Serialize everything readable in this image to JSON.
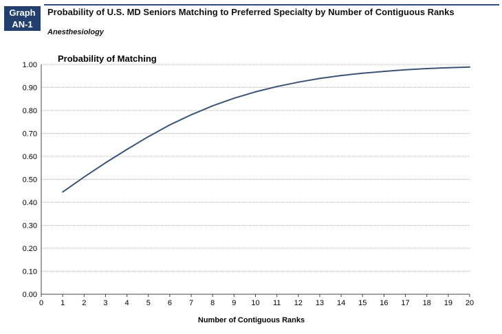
{
  "header": {
    "badge_line1": "Graph",
    "badge_line2": "AN-1",
    "title": "Probability of U.S. MD Seniors Matching to Preferred Specialty by Number of Contiguous Ranks",
    "subtitle": "Anesthesiology"
  },
  "colors": {
    "badge": "#233f6e",
    "line": "#3b5275",
    "grid": "#b0b0b0"
  },
  "chart_data": {
    "type": "line",
    "title": "Probability of Matching",
    "xlabel": "Number of Contiguous Ranks",
    "ylabel": "",
    "xlim": [
      0,
      20
    ],
    "ylim": [
      0.0,
      1.0
    ],
    "x_ticks": [
      "0",
      "1",
      "2",
      "3",
      "4",
      "5",
      "6",
      "7",
      "8",
      "9",
      "10",
      "11",
      "12",
      "13",
      "14",
      "15",
      "16",
      "17",
      "18",
      "19",
      "20"
    ],
    "y_ticks": [
      "0.00",
      "0.10",
      "0.20",
      "0.30",
      "0.40",
      "0.50",
      "0.60",
      "0.70",
      "0.80",
      "0.90",
      "1.00"
    ],
    "grid": true,
    "series": [
      {
        "x": [
          1,
          2,
          3,
          4,
          5,
          6,
          7,
          8,
          9,
          10,
          11,
          12,
          13,
          14,
          15,
          16,
          17,
          18,
          19,
          20
        ],
        "values": [
          0.445,
          0.51,
          0.572,
          0.63,
          0.686,
          0.737,
          0.781,
          0.82,
          0.853,
          0.881,
          0.904,
          0.923,
          0.939,
          0.952,
          0.962,
          0.97,
          0.977,
          0.982,
          0.986,
          0.989
        ]
      }
    ]
  }
}
